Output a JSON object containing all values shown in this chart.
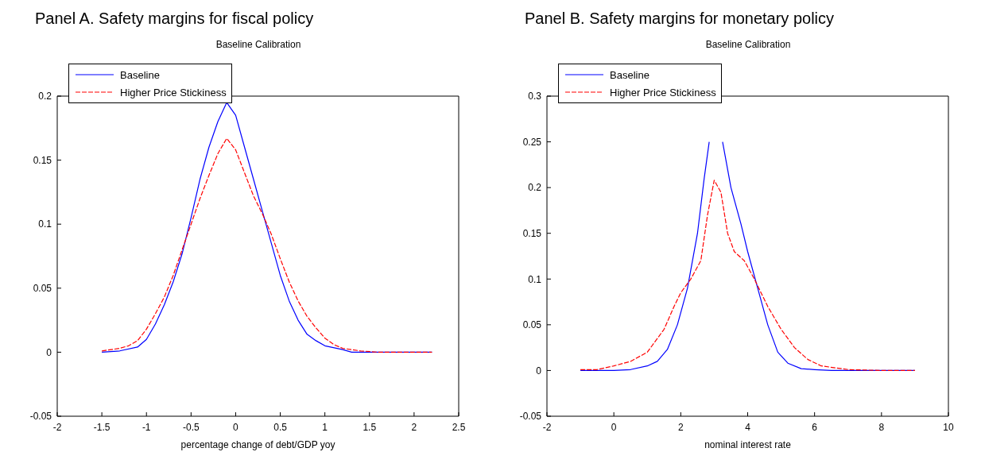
{
  "chart_data": [
    {
      "type": "line",
      "title": "Panel A. Safety margins for fiscal policy",
      "subtitle": "Baseline Calibration",
      "xlabel": "percentage change of debt/GDP yoy",
      "xlim": [
        -2,
        2.5
      ],
      "xticks": [
        -2,
        -1.5,
        -1,
        -0.5,
        0,
        0.5,
        1,
        1.5,
        2,
        2.5
      ],
      "ylim": [
        -0.05,
        0.2
      ],
      "yticks": [
        -0.05,
        0,
        0.05,
        0.1,
        0.15,
        0.2
      ],
      "grid": false,
      "legend": "top left",
      "marker": "none",
      "series": [
        {
          "name": "Baseline",
          "color": "#0000ff",
          "line_style": "solid",
          "x": [
            -1.5,
            -1.3,
            -1.1,
            -1.0,
            -0.9,
            -0.8,
            -0.7,
            -0.6,
            -0.5,
            -0.4,
            -0.3,
            -0.2,
            -0.1,
            0,
            0.1,
            0.2,
            0.3,
            0.4,
            0.5,
            0.6,
            0.7,
            0.8,
            0.9,
            1.0,
            1.2,
            1.3,
            2.2
          ],
          "values": [
            0,
            0.001,
            0.004,
            0.01,
            0.022,
            0.037,
            0.055,
            0.077,
            0.105,
            0.135,
            0.16,
            0.18,
            0.195,
            0.185,
            0.16,
            0.135,
            0.11,
            0.085,
            0.06,
            0.04,
            0.025,
            0.014,
            0.009,
            0.005,
            0.002,
            0,
            0
          ]
        },
        {
          "name": "Higher Price Stickiness",
          "color": "#ff0000",
          "line_style": "dashed",
          "x": [
            -1.5,
            -1.3,
            -1.2,
            -1.1,
            -1.0,
            -0.9,
            -0.8,
            -0.7,
            -0.6,
            -0.5,
            -0.4,
            -0.3,
            -0.2,
            -0.1,
            0,
            0.1,
            0.2,
            0.3,
            0.4,
            0.5,
            0.6,
            0.7,
            0.8,
            0.9,
            1.0,
            1.1,
            1.2,
            1.4,
            1.6,
            2.2
          ],
          "values": [
            0.001,
            0.003,
            0.005,
            0.009,
            0.018,
            0.03,
            0.043,
            0.06,
            0.08,
            0.1,
            0.12,
            0.138,
            0.155,
            0.167,
            0.158,
            0.14,
            0.122,
            0.108,
            0.092,
            0.073,
            0.055,
            0.04,
            0.028,
            0.019,
            0.011,
            0.006,
            0.003,
            0.001,
            0,
            0
          ]
        }
      ]
    },
    {
      "type": "line",
      "title": "Panel B. Safety margins for monetary policy",
      "subtitle": "Baseline Calibration",
      "xlabel": "nominal interest rate",
      "xlim": [
        -2,
        10
      ],
      "xticks": [
        -2,
        0,
        2,
        4,
        6,
        8,
        10
      ],
      "ylim": [
        -0.05,
        0.3
      ],
      "yticks": [
        -0.05,
        0,
        0.05,
        0.1,
        0.15,
        0.2,
        0.25,
        0.3
      ],
      "grid": false,
      "legend": "top left",
      "marker": "none",
      "series": [
        {
          "name": "Baseline",
          "color": "#0000ff",
          "line_style": "solid",
          "x": [
            -1,
            0,
            0.5,
            1,
            1.3,
            1.6,
            1.9,
            2.2,
            2.5,
            2.7,
            2.85,
            3.05,
            3.25,
            3.5,
            3.8,
            4.0,
            4.3,
            4.6,
            4.9,
            5.2,
            5.6,
            6,
            6.5,
            9
          ],
          "values": [
            0,
            0,
            0.001,
            0.005,
            0.01,
            0.023,
            0.05,
            0.09,
            0.15,
            0.21,
            0.25,
            null,
            0.25,
            0.2,
            0.16,
            0.13,
            0.09,
            0.05,
            0.02,
            0.008,
            0.002,
            0.001,
            0,
            0
          ]
        },
        {
          "name": "Higher Price Stickiness",
          "color": "#ff0000",
          "line_style": "dashed",
          "x": [
            -1,
            -0.5,
            0,
            0.5,
            1,
            1.5,
            1.8,
            2.0,
            2.3,
            2.6,
            2.8,
            3.0,
            3.2,
            3.4,
            3.6,
            3.9,
            4.2,
            4.6,
            5,
            5.4,
            5.8,
            6.2,
            7,
            8,
            9
          ],
          "values": [
            0.001,
            0.001,
            0.005,
            0.01,
            0.02,
            0.045,
            0.07,
            0.085,
            0.1,
            0.12,
            0.17,
            0.208,
            0.195,
            0.15,
            0.13,
            0.12,
            0.1,
            0.07,
            0.045,
            0.025,
            0.012,
            0.005,
            0.001,
            0,
            0
          ]
        }
      ]
    }
  ]
}
